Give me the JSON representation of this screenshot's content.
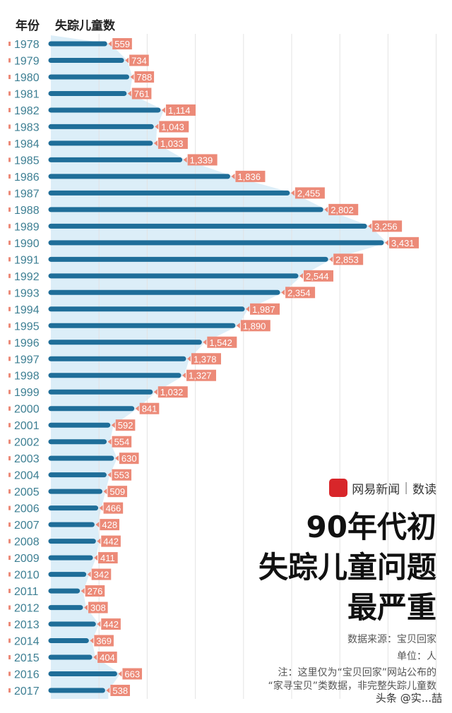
{
  "chart_data": {
    "type": "bar",
    "orientation": "horizontal",
    "columns": [
      "年份",
      "失踪儿童数"
    ],
    "categories": [
      "1978",
      "1979",
      "1980",
      "1981",
      "1982",
      "1983",
      "1984",
      "1985",
      "1986",
      "1987",
      "1988",
      "1989",
      "1990",
      "1991",
      "1992",
      "1993",
      "1994",
      "1995",
      "1996",
      "1997",
      "1998",
      "1999",
      "2000",
      "2001",
      "2002",
      "2003",
      "2004",
      "2005",
      "2006",
      "2007",
      "2008",
      "2009",
      "2010",
      "2011",
      "2012",
      "2013",
      "2014",
      "2015",
      "2016",
      "2017"
    ],
    "values": [
      559,
      734,
      788,
      761,
      1114,
      1043,
      1033,
      1339,
      1836,
      2455,
      2802,
      3256,
      3431,
      2853,
      2544,
      2354,
      1987,
      1890,
      1542,
      1378,
      1327,
      1032,
      841,
      592,
      554,
      630,
      553,
      509,
      466,
      428,
      442,
      411,
      342,
      276,
      308,
      442,
      369,
      404,
      663,
      538
    ],
    "labels": [
      "559",
      "734",
      "788",
      "761",
      "1,114",
      "1,043",
      "1,033",
      "1,339",
      "1,836",
      "2,455",
      "2,802",
      "3,256",
      "3,431",
      "2,853",
      "2,544",
      "2,354",
      "1,987",
      "1,890",
      "1,542",
      "1,378",
      "1,327",
      "1,032",
      "841",
      "592",
      "554",
      "630",
      "553",
      "509",
      "466",
      "428",
      "442",
      "411",
      "342",
      "276",
      "308",
      "442",
      "369",
      "404",
      "663",
      "538"
    ],
    "xlim": [
      0,
      4000
    ],
    "grid": true,
    "colors": {
      "bar": "#1f6e99",
      "area": "#dceef8",
      "label_bg": "#ec8a78",
      "year_text": "#3d7f93",
      "grid": "#e3e3e3"
    }
  },
  "brand": {
    "logo_text": "網易",
    "name": "网易新闻",
    "section": "数读"
  },
  "title_lines": [
    "90年代初",
    "失踪儿童问题",
    "最严重"
  ],
  "source": "数据来源：宝贝回家",
  "unit": "单位：人",
  "note_lines": [
    "注：这里仅为“宝贝回家”网站公布的",
    "“家寻宝贝”类数据，非完整失踪儿童数"
  ],
  "watermark": "头条 @实...喆"
}
